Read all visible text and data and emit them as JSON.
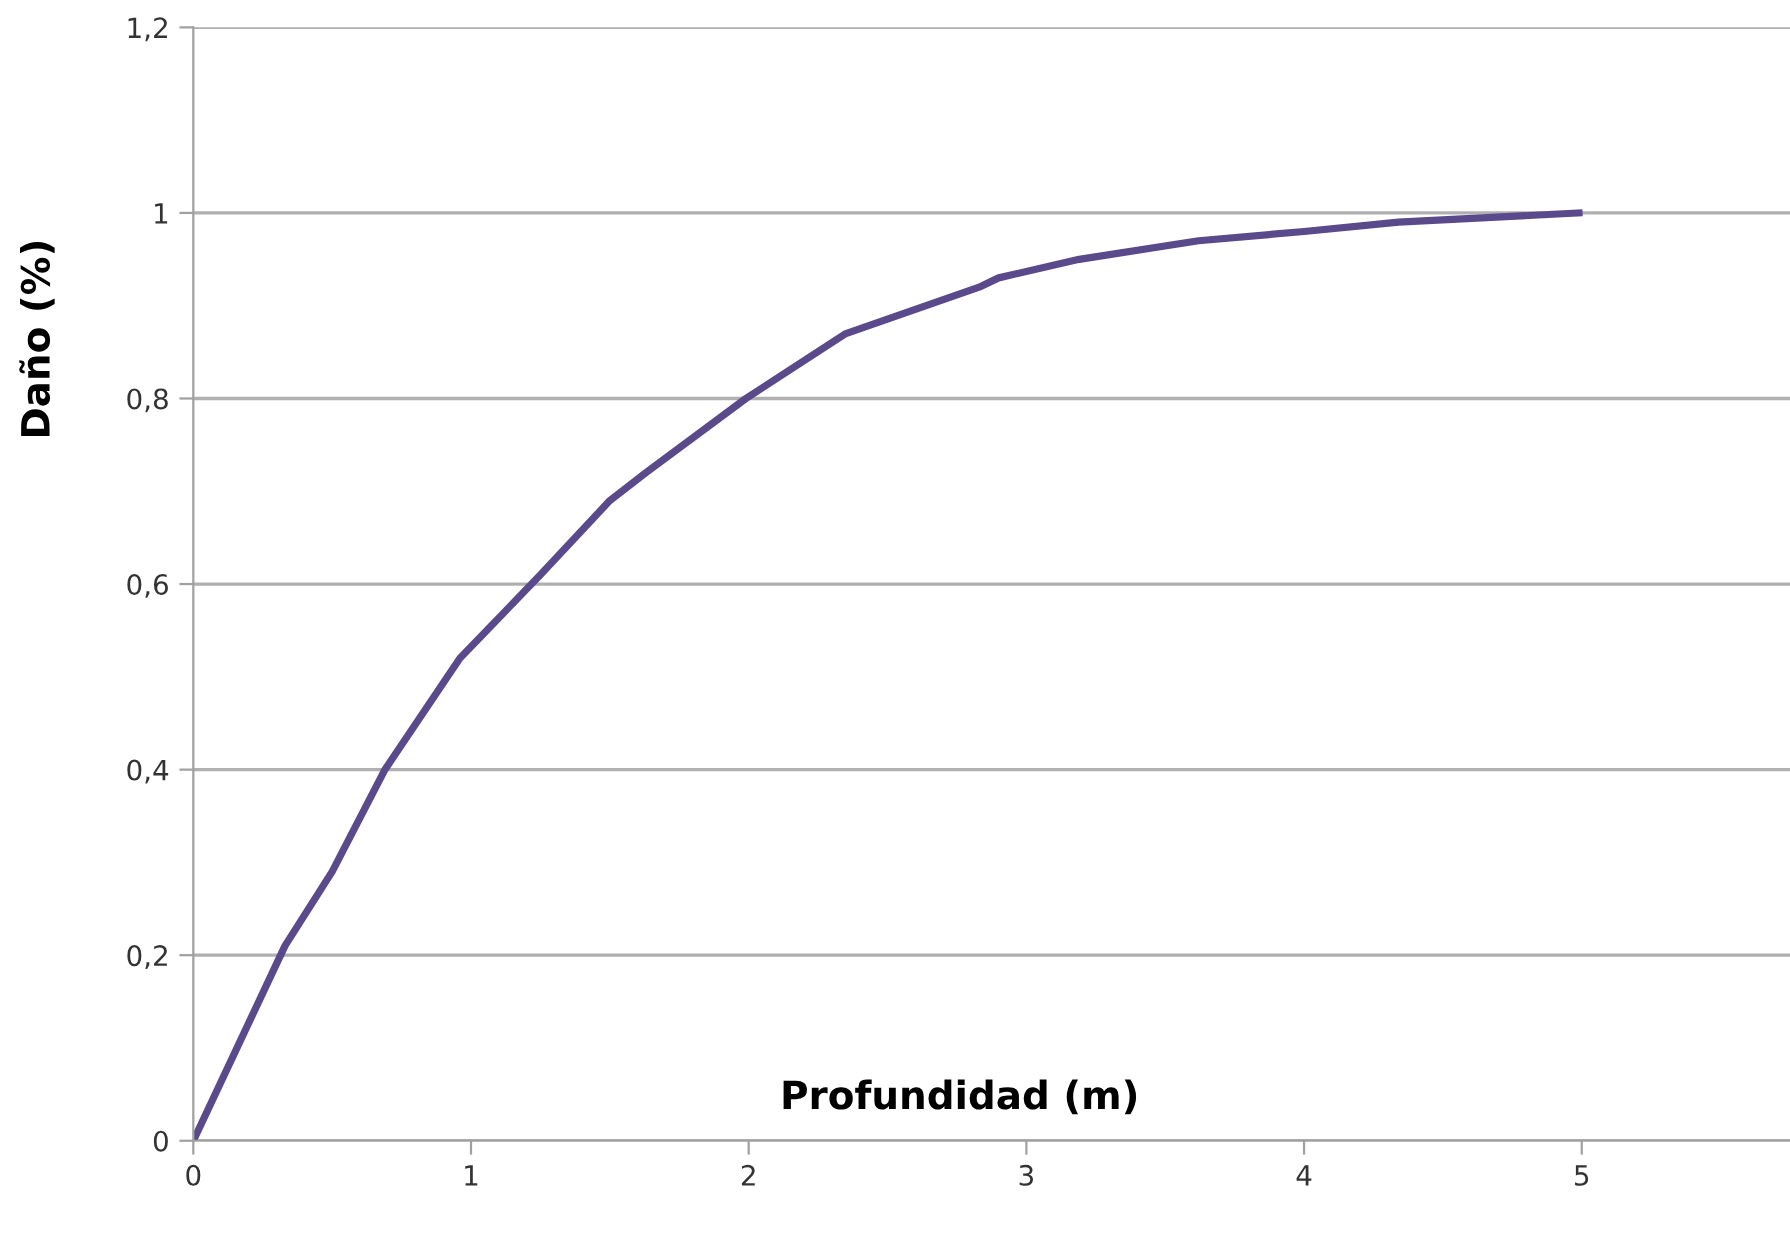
{
  "chart_data": {
    "type": "line",
    "xlabel": "Profundidad (m)",
    "ylabel": "Daño (%)",
    "xlim": [
      0,
      5.75
    ],
    "ylim": [
      0,
      1.2
    ],
    "xticks": [
      0,
      1,
      2,
      3,
      4,
      5
    ],
    "yticks": [
      0,
      {
        "value": 0.2,
        "label": "0,2"
      },
      {
        "value": 0.4,
        "label": "0,4"
      },
      {
        "value": 0.6,
        "label": "0,6"
      },
      {
        "value": 0.8,
        "label": "0,8"
      },
      1,
      {
        "value": 1.2,
        "label": "1,2"
      }
    ],
    "grid": "y",
    "line_style": "solid",
    "series": [
      {
        "color": "#5b4a8b",
        "x": [
          0,
          0.33,
          0.5,
          0.69,
          0.96,
          1.25,
          1.5,
          1.63,
          1.99,
          2.35,
          2.83,
          2.9,
          3.19,
          3.62,
          4.0,
          4.34,
          4.99
        ],
        "values": [
          0,
          0.21,
          0.29,
          0.4,
          0.52,
          0.61,
          0.69,
          0.72,
          0.8,
          0.87,
          0.92,
          0.93,
          0.95,
          0.97,
          0.98,
          0.99,
          1.0
        ]
      }
    ]
  }
}
